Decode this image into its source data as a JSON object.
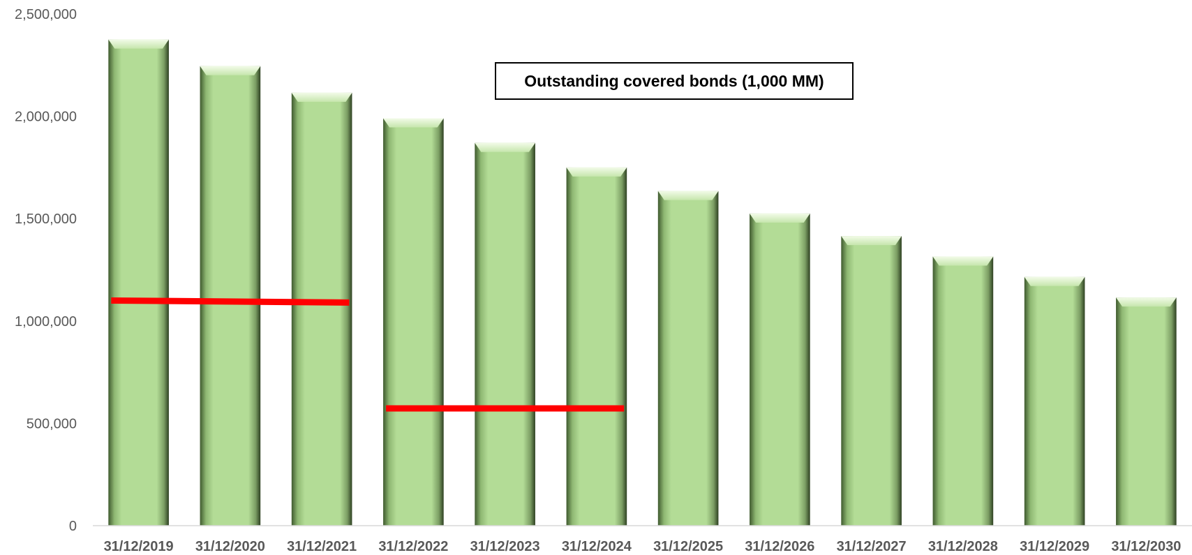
{
  "chart_data": {
    "type": "bar",
    "title": "",
    "xlabel": "",
    "ylabel": "",
    "ylim": [
      0,
      2500000
    ],
    "yticks": [
      0,
      500000,
      1000000,
      1500000,
      2000000,
      2500000
    ],
    "ytick_labels": [
      "0",
      "500,000",
      "1,000,000",
      "1,500,000",
      "2,000,000",
      "2,500,000"
    ],
    "grid": false,
    "legend_position": "top-center",
    "categories": [
      "31/12/2019",
      "31/12/2020",
      "31/12/2021",
      "31/12/2022",
      "31/12/2023",
      "31/12/2024",
      "31/12/2025",
      "31/12/2026",
      "31/12/2027",
      "31/12/2028",
      "31/12/2029",
      "31/12/2030"
    ],
    "series": [
      {
        "name": "Outstanding covered bonds (1,000 MM)",
        "values": [
          2375000,
          2245000,
          2115000,
          1990000,
          1870000,
          1750000,
          1635000,
          1525000,
          1415000,
          1315000,
          1215000,
          1115000
        ],
        "color": "#b3dc96"
      }
    ],
    "reference_lines": [
      {
        "from_category": "31/12/2019",
        "to_category": "31/12/2021",
        "value_start": 1100000,
        "value_end": 1090000,
        "color": "#ff0000"
      },
      {
        "from_category": "31/12/2022",
        "to_category": "31/12/2024",
        "value_start": 573000,
        "value_end": 573000,
        "color": "#ff0000"
      }
    ]
  }
}
